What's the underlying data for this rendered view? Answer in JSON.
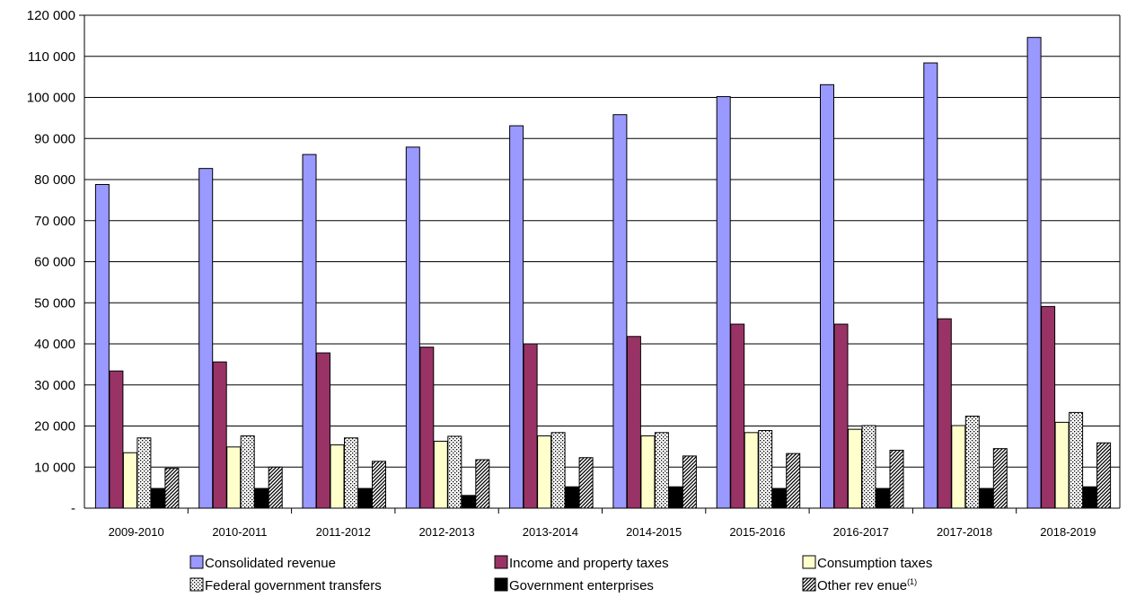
{
  "chart_data": {
    "type": "bar",
    "title": "",
    "xlabel": "",
    "ylabel": "",
    "ylim": [
      0,
      120000
    ],
    "grid": true,
    "legend_position": "bottom",
    "yticks": [
      "-",
      "10 000",
      "20 000",
      "30 000",
      "40 000",
      "50 000",
      "60 000",
      "70 000",
      "80 000",
      "90 000",
      "100 000",
      "110 000",
      "120 000"
    ],
    "categories": [
      "2009-2010",
      "2010-2011",
      "2011-2012",
      "2012-2013",
      "2013-2014",
      "2014-2015",
      "2015-2016",
      "2016-2017",
      "2017-2018",
      "2018-2019"
    ],
    "series": [
      {
        "name": "Consolidated revenue",
        "color": "#9999ff",
        "pattern": "solid",
        "values": [
          78800,
          82700,
          86100,
          87900,
          93100,
          95800,
          100200,
          103100,
          108400,
          114600
        ]
      },
      {
        "name": "Income and property taxes",
        "color": "#993366",
        "pattern": "solid",
        "values": [
          33400,
          35600,
          37800,
          39200,
          40000,
          41800,
          44800,
          44800,
          46100,
          49100
        ]
      },
      {
        "name": "Consumption taxes",
        "color": "#ffffcc",
        "pattern": "solid",
        "values": [
          13500,
          14900,
          15400,
          16300,
          17600,
          17600,
          18400,
          19200,
          20100,
          20900
        ]
      },
      {
        "name": "Federal government transfers",
        "color": "#ffffff",
        "pattern": "dots",
        "values": [
          17100,
          17600,
          17100,
          17500,
          18400,
          18400,
          18900,
          20100,
          22400,
          23300
        ]
      },
      {
        "name": "Government enterprises",
        "color": "#000000",
        "pattern": "solid",
        "values": [
          4800,
          4800,
          4800,
          3100,
          5200,
          5200,
          4800,
          4800,
          4800,
          5200
        ]
      },
      {
        "name": "Other rev enue",
        "name_sup": "(1)",
        "color": "#ffffff",
        "pattern": "diagonal",
        "values": [
          9700,
          10000,
          11400,
          11800,
          12300,
          12700,
          13300,
          14100,
          14500,
          15900
        ]
      }
    ]
  }
}
